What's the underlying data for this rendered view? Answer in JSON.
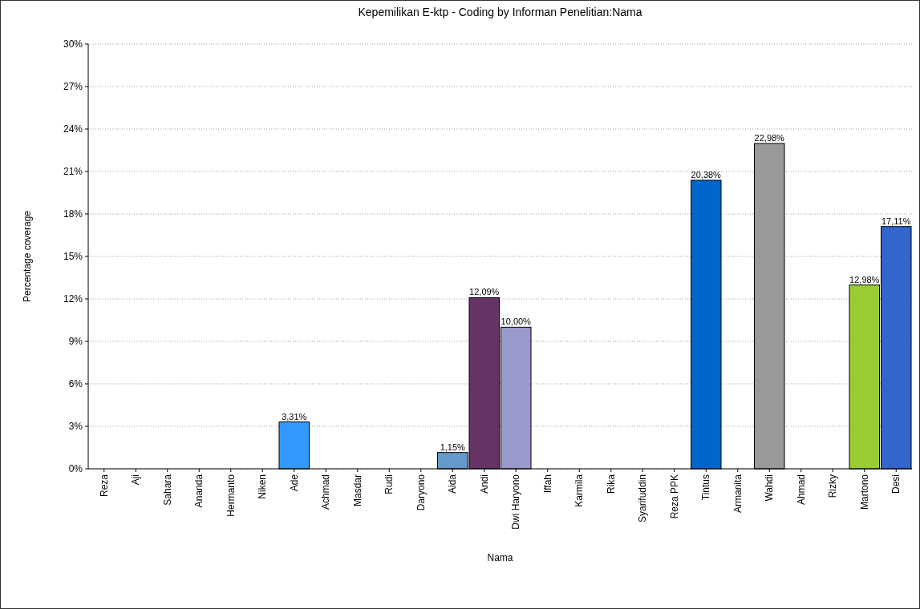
{
  "chart_data": {
    "type": "bar",
    "title": "Kepemilikan E-ktp - Coding by Informan Penelitian:Nama",
    "xlabel": "Nama",
    "ylabel": "Percentage coverage",
    "categories": [
      "Reza",
      "Aji",
      "Sahara",
      "Ananda",
      "Hermanto",
      "Niken",
      "Ade",
      "Achmad",
      "Masdar",
      "Rudi",
      "Daryono",
      "Aida",
      "Andi",
      "Dwi Haryono",
      "Iffah",
      "Karmila",
      "Rika",
      "Syarifuddin",
      "Reza PPK",
      "Tintus",
      "Armanita",
      "Wahdi",
      "Ahmad",
      "Rizky",
      "Martono",
      "Desi"
    ],
    "values": [
      0,
      0,
      0,
      0,
      0,
      0,
      3.31,
      0,
      0,
      0,
      0,
      1.15,
      12.09,
      10,
      0,
      0,
      0,
      0,
      0,
      20.38,
      0,
      22.98,
      0,
      0,
      12.98,
      17.11
    ],
    "value_labels": [
      null,
      null,
      null,
      null,
      null,
      null,
      "3,31%",
      null,
      null,
      null,
      null,
      "1,15%",
      "12,09%",
      "10,00%",
      null,
      null,
      null,
      null,
      null,
      "20,38%",
      null,
      "22,98%",
      null,
      null,
      "12,98%",
      "17,11%"
    ],
    "colors": [
      "#999999",
      "#999999",
      "#999999",
      "#999999",
      "#999999",
      "#999999",
      "#3399ff",
      "#999999",
      "#999999",
      "#999999",
      "#999999",
      "#6699cc",
      "#663366",
      "#9999cc",
      "#999999",
      "#999999",
      "#999999",
      "#999999",
      "#999999",
      "#0066cc",
      "#999999",
      "#999999",
      "#999999",
      "#999999",
      "#99cc33",
      "#3366cc"
    ],
    "ylim": [
      0,
      30
    ],
    "yticks": [
      {
        "value": 0,
        "label": "0%"
      },
      {
        "value": 3,
        "label": "3%"
      },
      {
        "value": 6,
        "label": "6%"
      },
      {
        "value": 9,
        "label": "9%"
      },
      {
        "value": 12,
        "label": "12%"
      },
      {
        "value": 15,
        "label": "15%"
      },
      {
        "value": 18,
        "label": "18%"
      },
      {
        "value": 21,
        "label": "21%"
      },
      {
        "value": 24,
        "label": "24%"
      },
      {
        "value": 27,
        "label": "27%"
      },
      {
        "value": 30,
        "label": "30%"
      }
    ],
    "grid": "y"
  }
}
